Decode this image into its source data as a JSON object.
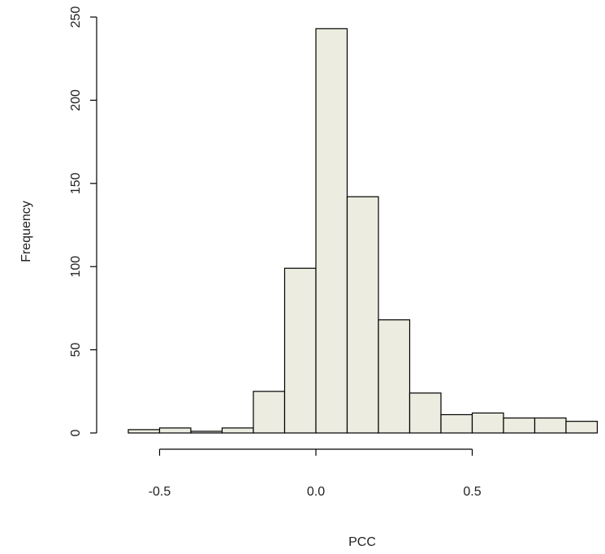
{
  "chart_data": {
    "type": "bar",
    "subtype": "histogram",
    "xlabel": "PCC",
    "ylabel": "Frequency",
    "bins": [
      {
        "start": -0.6,
        "end": -0.5,
        "count": 2
      },
      {
        "start": -0.5,
        "end": -0.4,
        "count": 3
      },
      {
        "start": -0.4,
        "end": -0.3,
        "count": 1
      },
      {
        "start": -0.3,
        "end": -0.2,
        "count": 3
      },
      {
        "start": -0.2,
        "end": -0.1,
        "count": 25
      },
      {
        "start": -0.1,
        "end": 0.0,
        "count": 99
      },
      {
        "start": 0.0,
        "end": 0.1,
        "count": 243
      },
      {
        "start": 0.1,
        "end": 0.2,
        "count": 142
      },
      {
        "start": 0.2,
        "end": 0.3,
        "count": 68
      },
      {
        "start": 0.3,
        "end": 0.4,
        "count": 24
      },
      {
        "start": 0.4,
        "end": 0.5,
        "count": 11
      },
      {
        "start": 0.5,
        "end": 0.6,
        "count": 12
      },
      {
        "start": 0.6,
        "end": 0.7,
        "count": 9
      },
      {
        "start": 0.7,
        "end": 0.8,
        "count": 9
      },
      {
        "start": 0.8,
        "end": 0.9,
        "count": 7
      }
    ],
    "x_ticks": [
      "-0.5",
      "0.0",
      "0.5"
    ],
    "x_tick_values": [
      -0.5,
      0.0,
      0.5
    ],
    "y_ticks": [
      "0",
      "50",
      "100",
      "150",
      "200",
      "250"
    ],
    "y_tick_values": [
      0,
      50,
      100,
      150,
      200,
      250
    ],
    "xlim": [
      -0.6,
      0.9
    ],
    "ylim": [
      0,
      250
    ],
    "grid": false,
    "legend": "none",
    "colors": {
      "bar_fill": "#ECECE0",
      "bar_stroke": "#000000",
      "axis": "#000000"
    }
  }
}
